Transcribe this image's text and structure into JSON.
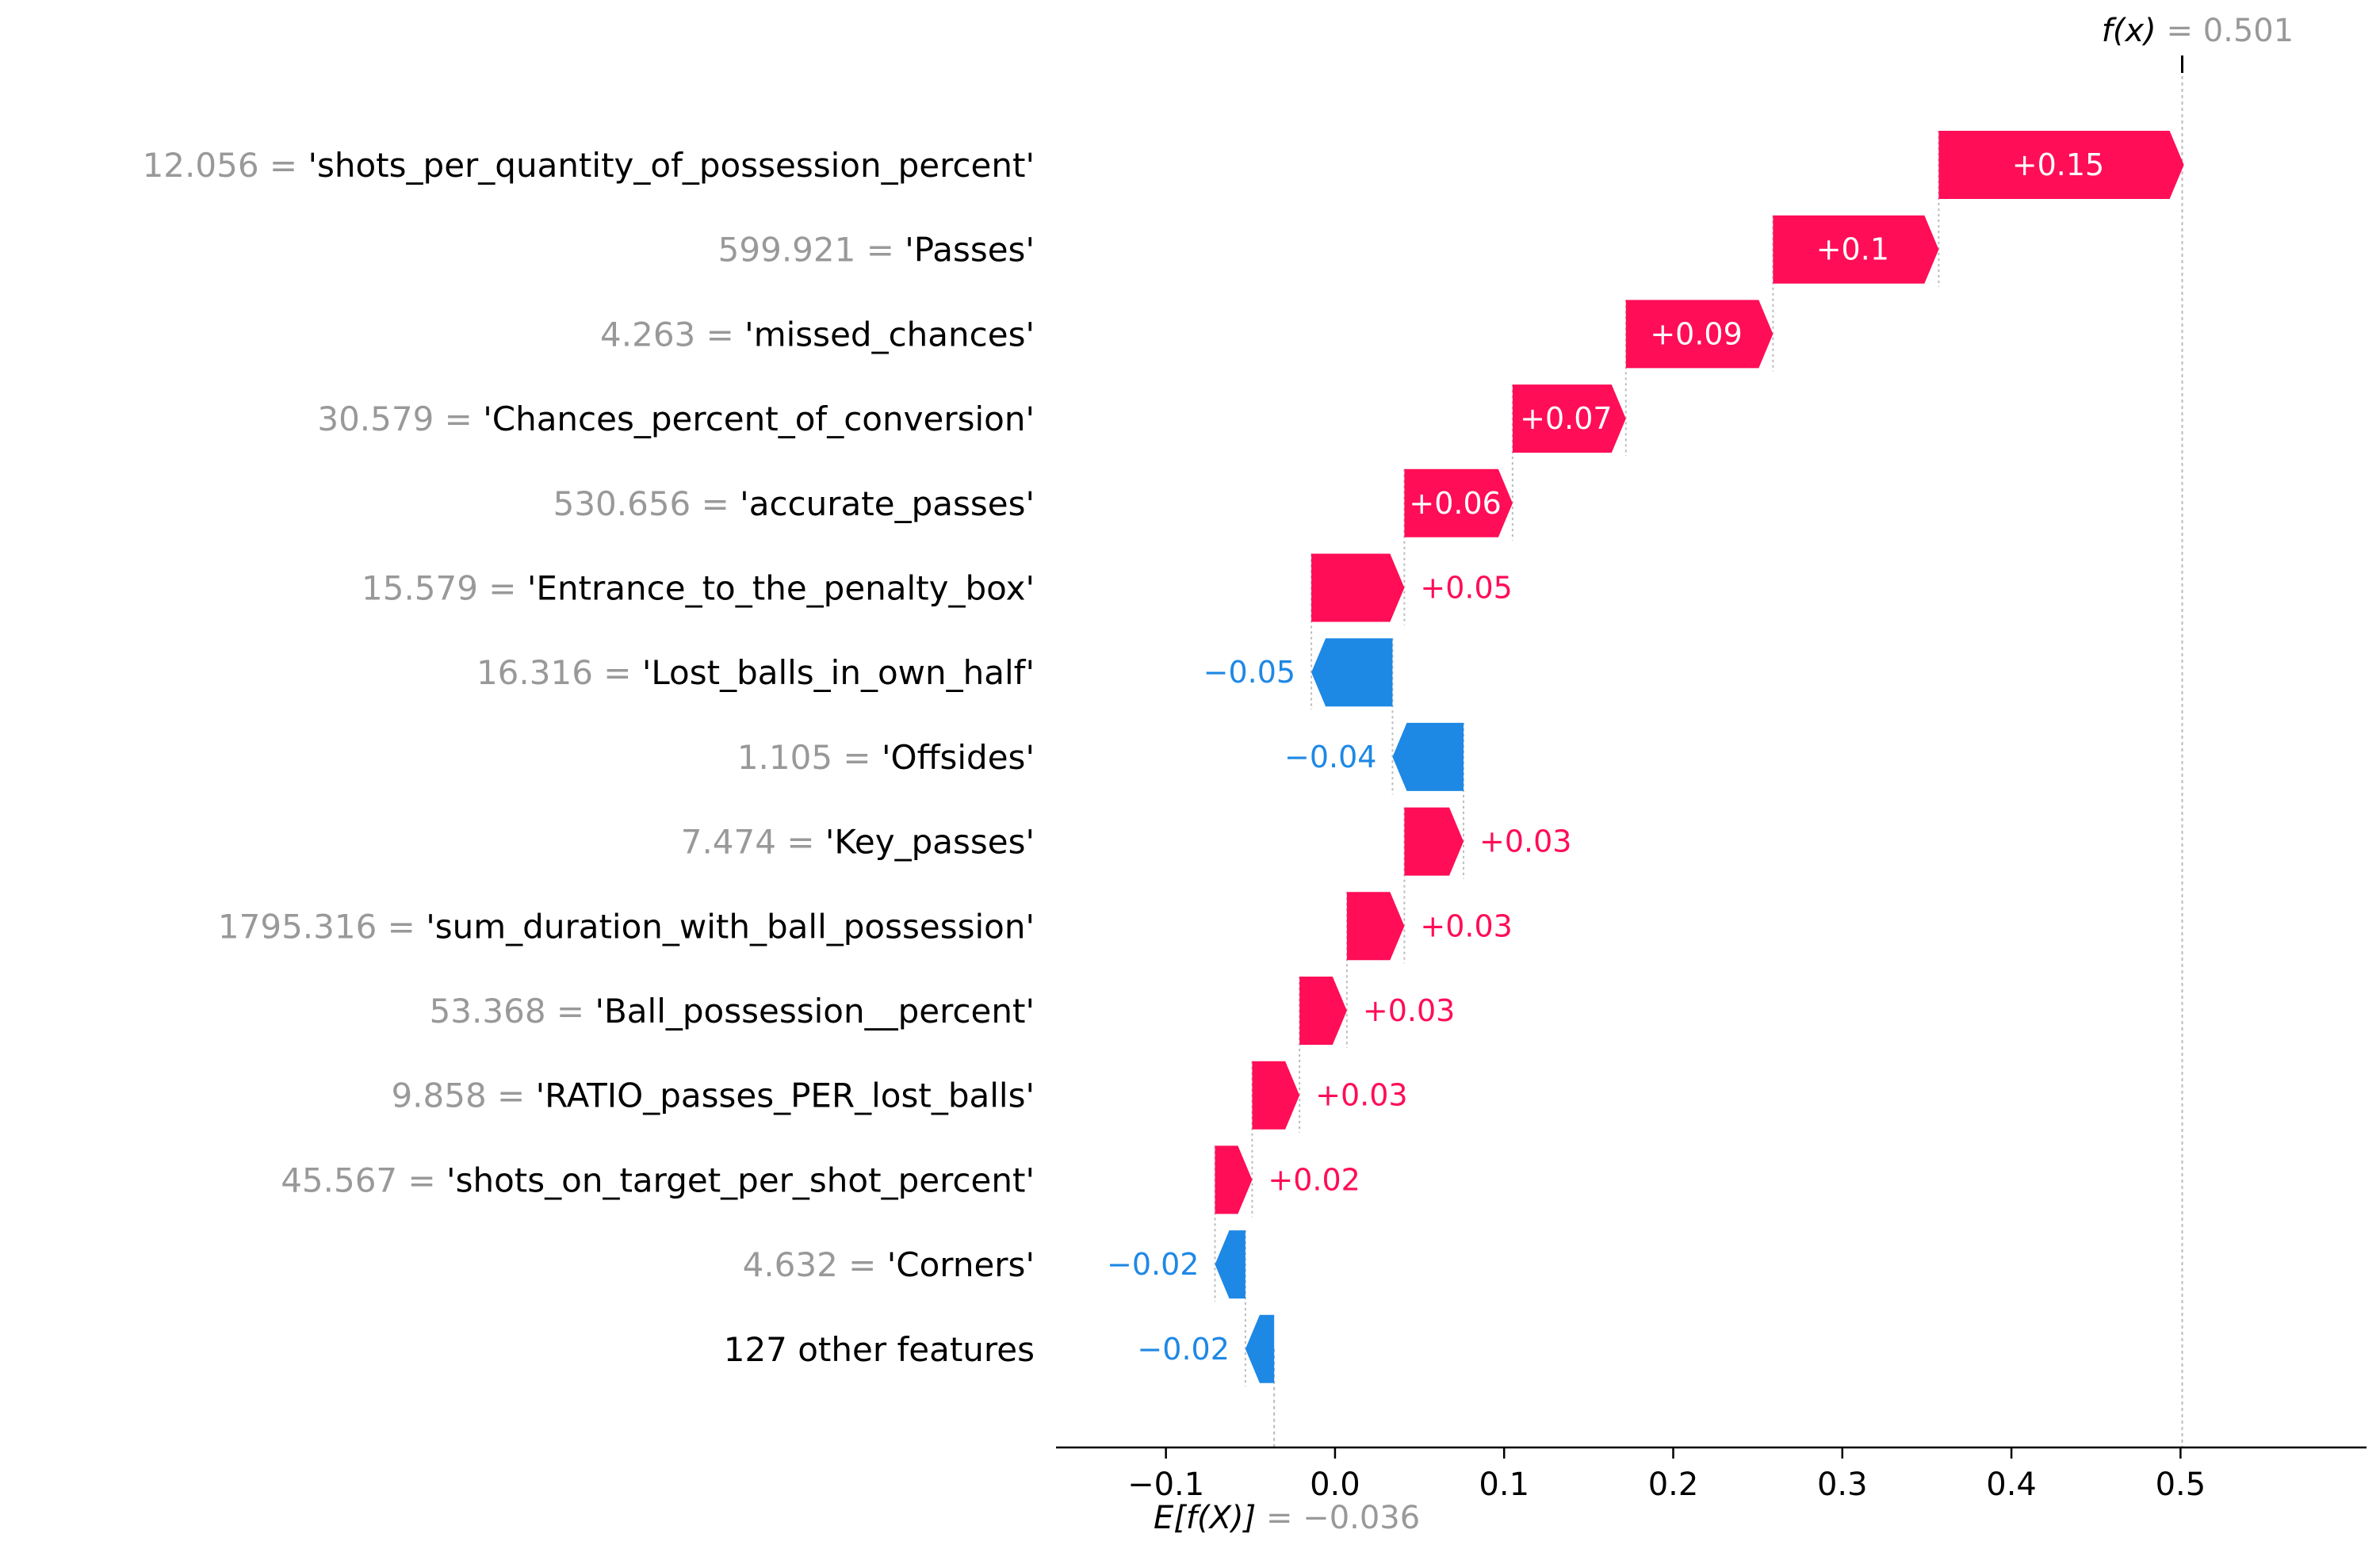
{
  "chart_data": {
    "type": "waterfall",
    "title": "",
    "xlabel": "",
    "ylabel": "",
    "xlim": [
      -0.165,
      0.61
    ],
    "grid": false,
    "xticks": [
      -0.1,
      0.0,
      0.1,
      0.2,
      0.3,
      0.4,
      0.5
    ],
    "xtick_labels": [
      "−0.1",
      "0.0",
      "0.1",
      "0.2",
      "0.3",
      "0.4",
      "0.5"
    ],
    "fx": {
      "label_prefix": "f(x)",
      "label_value": " = 0.501",
      "value": 0.501
    },
    "base": {
      "label_prefix": "E[f(X)]",
      "label_value": " = −0.036",
      "value": -0.036
    },
    "features": [
      {
        "value_text": "12.056",
        "name": "'shots_per_quantity_of_possession_percent'",
        "shap": 0.145,
        "shap_label": "+0.15"
      },
      {
        "value_text": "599.921",
        "name": "'Passes'",
        "shap": 0.098,
        "shap_label": "+0.1"
      },
      {
        "value_text": "4.263",
        "name": "'missed_chances'",
        "shap": 0.087,
        "shap_label": "+0.09"
      },
      {
        "value_text": "30.579",
        "name": "'Chances_percent_of_conversion'",
        "shap": 0.067,
        "shap_label": "+0.07"
      },
      {
        "value_text": "530.656",
        "name": "'accurate_passes'",
        "shap": 0.064,
        "shap_label": "+0.06"
      },
      {
        "value_text": "15.579",
        "name": "'Entrance_to_the_penalty_box'",
        "shap": 0.055,
        "shap_label": "+0.05"
      },
      {
        "value_text": "16.316",
        "name": "'Lost_balls_in_own_half'",
        "shap": -0.048,
        "shap_label": "−0.05"
      },
      {
        "value_text": "1.105",
        "name": "'Offsides'",
        "shap": -0.042,
        "shap_label": "−0.04"
      },
      {
        "value_text": "7.474",
        "name": "'Key_passes'",
        "shap": 0.035,
        "shap_label": "+0.03"
      },
      {
        "value_text": "1795.316",
        "name": "'sum_duration_with_ball_possession'",
        "shap": 0.034,
        "shap_label": "+0.03"
      },
      {
        "value_text": "53.368",
        "name": "'Ball_possession__percent'",
        "shap": 0.028,
        "shap_label": "+0.03"
      },
      {
        "value_text": "9.858",
        "name": "'RATIO_passes_PER_lost_balls'",
        "shap": 0.028,
        "shap_label": "+0.03"
      },
      {
        "value_text": "45.567",
        "name": "'shots_on_target_per_shot_percent'",
        "shap": 0.022,
        "shap_label": "+0.02"
      },
      {
        "value_text": "4.632",
        "name": "'Corners'",
        "shap": -0.018,
        "shap_label": "−0.02"
      },
      {
        "value_text": "",
        "name": "127 other features",
        "shap": -0.017,
        "shap_label": "−0.02"
      }
    ],
    "colors": {
      "positive": "#ff0d57",
      "negative": "#1e88e5",
      "value_text": "#999999",
      "name_text": "#000000",
      "axis": "#000000",
      "guide": "#bbbbbb"
    }
  }
}
